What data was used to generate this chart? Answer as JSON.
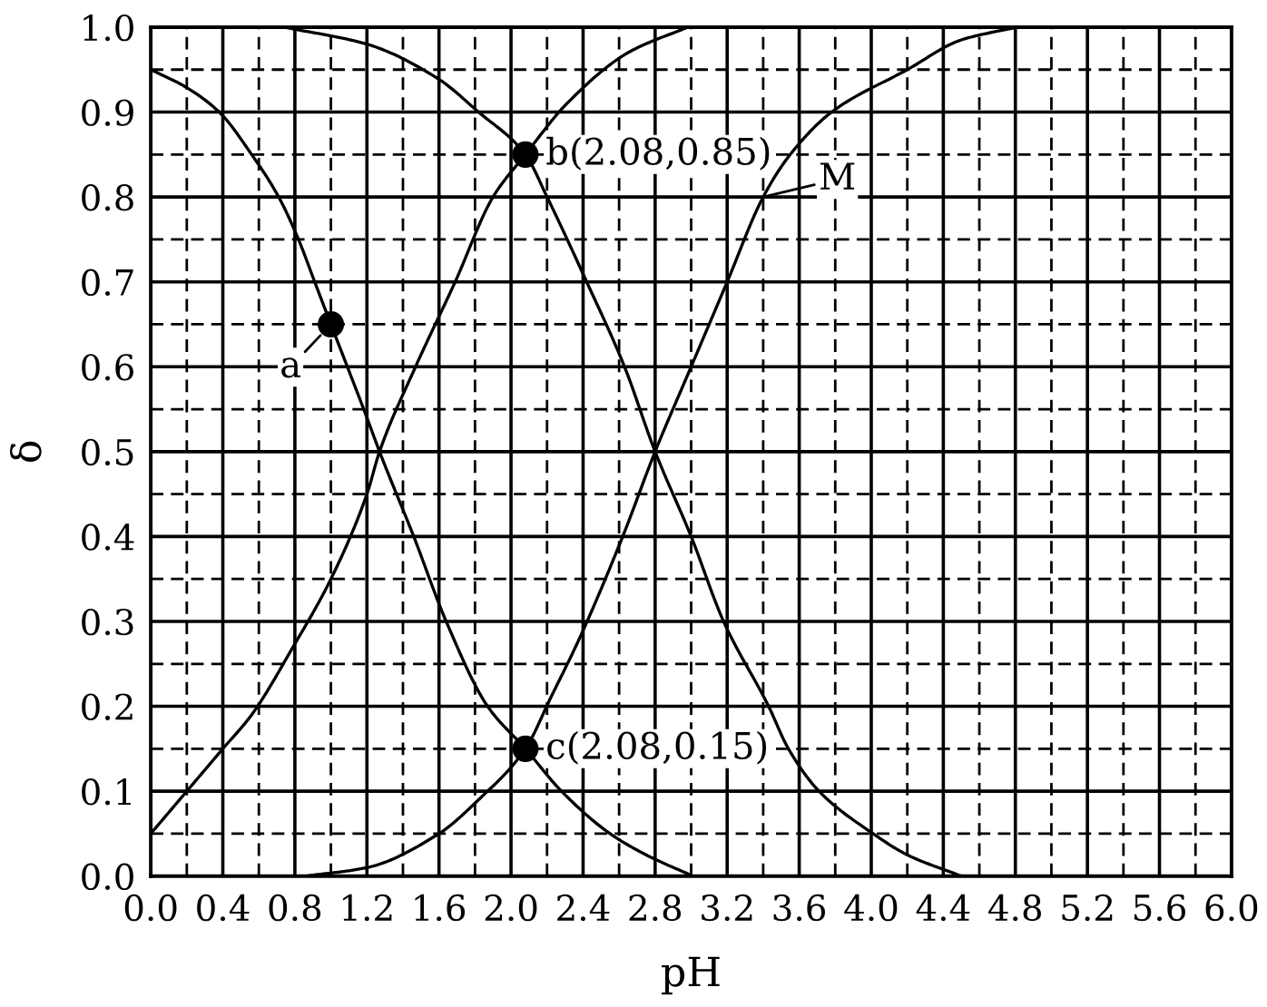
{
  "chart_data": {
    "type": "line",
    "xlabel": "pH",
    "ylabel": "δ",
    "xlim": [
      0,
      6
    ],
    "ylim": [
      0,
      1
    ],
    "xticks": [
      {
        "value": 0,
        "label": "0.0"
      },
      {
        "value": 0.2,
        "label": null
      },
      0.4,
      {
        "value": 0.6,
        "label": null
      },
      0.8,
      {
        "value": 1,
        "label": null
      },
      1.2,
      {
        "value": 1.4,
        "label": null
      },
      1.6,
      {
        "value": 1.8,
        "label": null
      },
      {
        "value": 2,
        "label": "2.0"
      },
      {
        "value": 2.2,
        "label": null
      },
      2.4,
      {
        "value": 2.6,
        "label": null
      },
      2.8,
      {
        "value": 3,
        "label": null
      },
      3.2,
      {
        "value": 3.4,
        "label": null
      },
      3.6,
      {
        "value": 3.8,
        "label": null
      },
      {
        "value": 4,
        "label": "4.0"
      },
      {
        "value": 4.2,
        "label": null
      },
      4.4,
      {
        "value": 4.6,
        "label": null
      },
      4.8,
      {
        "value": 5,
        "label": null
      },
      5.2,
      {
        "value": 5.4,
        "label": null
      },
      5.6,
      {
        "value": 5.8,
        "label": null
      },
      {
        "value": 6,
        "label": "6.0"
      }
    ],
    "yticks": [
      {
        "value": 0,
        "label": "0.0"
      },
      {
        "value": 0.05,
        "label": null
      },
      0.1,
      {
        "value": 0.15,
        "label": null
      },
      0.2,
      {
        "value": 0.25,
        "label": null
      },
      0.3,
      {
        "value": 0.35,
        "label": null
      },
      0.4,
      {
        "value": 0.45,
        "label": null
      },
      0.5,
      {
        "value": 0.55,
        "label": null
      },
      0.6,
      {
        "value": 0.65,
        "label": null
      },
      0.7,
      {
        "value": 0.75,
        "label": null
      },
      0.8,
      {
        "value": 0.85,
        "label": null
      },
      0.9,
      {
        "value": 0.95,
        "label": null
      },
      {
        "value": 1,
        "label": "1.0"
      }
    ],
    "grid": true,
    "series": [
      {
        "color": "#000000",
        "x": [
          0,
          0.19,
          0.38,
          0.56,
          0.71,
          0.82,
          0.91,
          1.0,
          1.2,
          1.27,
          1.46,
          1.64,
          1.87,
          2.08,
          2.28,
          2.55,
          2.75,
          3.01
        ],
        "values": [
          0.95,
          0.93,
          0.9,
          0.85,
          0.8,
          0.75,
          0.7,
          0.65,
          0.54,
          0.5,
          0.4,
          0.3,
          0.2,
          0.15,
          0.1,
          0.05,
          0.025,
          0
        ]
      },
      {
        "color": "#000000",
        "x": [
          0,
          0.2,
          0.4,
          0.56,
          0.79,
          1.0,
          1.2,
          1.27,
          1.47,
          1.69,
          1.9,
          2.08,
          2.31,
          2.65,
          2.98
        ],
        "values": [
          0.05,
          0.1,
          0.15,
          0.19,
          0.27,
          0.35,
          0.45,
          0.5,
          0.6,
          0.7,
          0.8,
          0.85,
          0.91,
          0.97,
          1.0
        ]
      },
      {
        "color": "#000000",
        "x": [
          0.74,
          1.2,
          1.59,
          1.82,
          2.08,
          2.2,
          2.42,
          2.63,
          2.8,
          3.0,
          3.18,
          3.43,
          3.54,
          3.71,
          4.01,
          4.2,
          4.5
        ],
        "values": [
          1.0,
          0.98,
          0.94,
          0.9,
          0.85,
          0.8,
          0.7,
          0.6,
          0.5,
          0.4,
          0.3,
          0.2,
          0.15,
          0.1,
          0.05,
          0.025,
          0
        ]
      },
      {
        "color": "#000000",
        "x": [
          0.86,
          1.2,
          1.6,
          1.82,
          2.08,
          2.22,
          2.38,
          2.62,
          2.8,
          3.0,
          3.2,
          3.4,
          3.55,
          3.78,
          4.2,
          4.5,
          4.81
        ],
        "values": [
          0,
          0.01,
          0.05,
          0.09,
          0.15,
          0.21,
          0.28,
          0.4,
          0.5,
          0.6,
          0.7,
          0.8,
          0.85,
          0.9,
          0.95,
          0.985,
          1.0
        ]
      },
      {
        "type": "scatter",
        "color": "#000000",
        "marker": "circle",
        "x": [
          1.0,
          2.08,
          2.08
        ],
        "values": [
          0.65,
          0.85,
          0.15
        ]
      }
    ],
    "annotations": [
      {
        "text": "a",
        "x": 1.0,
        "y": 0.65
      },
      {
        "text": "b(2.08,0.85)",
        "x": 2.08,
        "y": 0.85
      },
      {
        "text": "c(2.08,0.15)",
        "x": 2.08,
        "y": 0.15
      },
      {
        "text": "M",
        "x": 3.4,
        "y": 0.8
      }
    ]
  }
}
